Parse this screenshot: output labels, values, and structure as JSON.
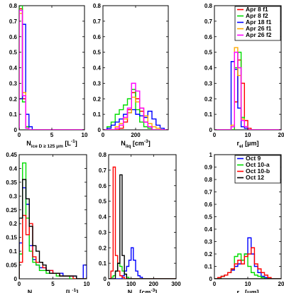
{
  "chart_data": [
    {
      "type": "histogram",
      "xlabel": "N_{ice D ≥ 125 μm} [L^{-1}]",
      "xlim": [
        0,
        10
      ],
      "ylim": [
        0,
        0.8
      ],
      "xticks": [
        0,
        5,
        10
      ],
      "yticks": [
        0,
        0.1,
        0.2,
        0.3,
        0.4,
        0.5,
        0.6,
        0.7,
        0.8
      ],
      "ytick_labels": [
        "0",
        "0.1",
        "0.2",
        "0.3",
        "0.4",
        "0.5",
        "0.6",
        "0.7",
        "0.8"
      ],
      "bin_edges": [
        0,
        0.5,
        1,
        1.5,
        2,
        2.5,
        3,
        3.5,
        4,
        4.5,
        5,
        5.5,
        6,
        6.5,
        7,
        7.5,
        8,
        8.5,
        9,
        9.5,
        10
      ],
      "series": [
        {
          "name": "Apr 8 f1",
          "color": "#ff0000",
          "values": [
            0.78,
            0.2,
            0.02,
            0,
            0,
            0,
            0,
            0,
            0,
            0,
            0,
            0,
            0,
            0,
            0,
            0,
            0,
            0,
            0,
            0
          ]
        },
        {
          "name": "Apr 8 f2",
          "color": "#00dd00",
          "values": [
            0.8,
            0.18,
            0.02,
            0,
            0,
            0,
            0,
            0,
            0,
            0,
            0,
            0,
            0,
            0,
            0,
            0,
            0,
            0,
            0,
            0
          ]
        },
        {
          "name": "Apr 18 f1",
          "color": "#0000ff",
          "values": [
            0.2,
            0.68,
            0.1,
            0.02,
            0,
            0,
            0,
            0,
            0,
            0,
            0,
            0,
            0,
            0,
            0,
            0,
            0,
            0,
            0,
            0
          ]
        },
        {
          "name": "Apr 26 f1",
          "color": "#ffaa00",
          "values": [
            0.75,
            0.24,
            0.01,
            0,
            0,
            0,
            0,
            0,
            0,
            0,
            0,
            0,
            0,
            0,
            0,
            0,
            0,
            0,
            0,
            0
          ]
        },
        {
          "name": "Apr 26 f2",
          "color": "#ff00ff",
          "values": [
            0.77,
            0.22,
            0.01,
            0,
            0,
            0,
            0,
            0,
            0,
            0,
            0,
            0,
            0,
            0,
            0,
            0,
            0,
            0,
            0,
            0
          ]
        }
      ]
    },
    {
      "type": "histogram",
      "xlabel": "N_{liq} [cm^{-3}]",
      "xlim": [
        0,
        400
      ],
      "ylim": [
        0,
        0.8
      ],
      "xticks": [
        0,
        200
      ],
      "yticks": [
        0,
        0.1,
        0.2,
        0.3,
        0.4,
        0.5,
        0.6,
        0.7,
        0.8
      ],
      "ytick_labels": [
        "0",
        "0.1",
        "0.2",
        "0.3",
        "0.4",
        "0.5",
        "0.6",
        "0.7",
        "0.8"
      ],
      "bin_edges": [
        0,
        25,
        50,
        75,
        100,
        125,
        150,
        175,
        200,
        225,
        250,
        275,
        300,
        325,
        350,
        375,
        400
      ],
      "series": [
        {
          "name": "Apr 8 f1",
          "color": "#ff0000",
          "values": [
            0,
            0,
            0,
            0,
            0.01,
            0.05,
            0.13,
            0.24,
            0.2,
            0.12,
            0.05,
            0.02,
            0,
            0,
            0,
            0
          ]
        },
        {
          "name": "Apr 8 f2",
          "color": "#00dd00",
          "values": [
            0,
            0.02,
            0.05,
            0.1,
            0.13,
            0.16,
            0.2,
            0.26,
            0.13,
            0.05,
            0.02,
            0.01,
            0,
            0,
            0,
            0
          ]
        },
        {
          "name": "Apr 18 f1",
          "color": "#0000ff",
          "values": [
            0,
            0.01,
            0.03,
            0.05,
            0.07,
            0.1,
            0.11,
            0.13,
            0.1,
            0.09,
            0.08,
            0.12,
            0.07,
            0.03,
            0.01,
            0
          ]
        },
        {
          "name": "Apr 26 f1",
          "color": "#ffaa00",
          "values": [
            0,
            0,
            0,
            0.02,
            0.04,
            0.07,
            0.11,
            0.21,
            0.18,
            0.14,
            0.09,
            0.04,
            0.02,
            0.01,
            0,
            0
          ]
        },
        {
          "name": "Apr 26 f2",
          "color": "#ff00ff",
          "values": [
            0,
            0,
            0,
            0.01,
            0.03,
            0.08,
            0.14,
            0.3,
            0.25,
            0.14,
            0.05,
            0.02,
            0,
            0,
            0,
            0
          ]
        }
      ]
    },
    {
      "type": "histogram",
      "xlabel": "r_{el} [μm]",
      "xlim": [
        0,
        20
      ],
      "ylim": [
        0,
        0.8
      ],
      "xticks": [
        0,
        10,
        20
      ],
      "yticks": [
        0,
        0.1,
        0.2,
        0.3,
        0.4,
        0.5,
        0.6,
        0.7,
        0.8
      ],
      "ytick_labels": [
        "0",
        "0.1",
        "0.2",
        "0.3",
        "0.4",
        "0.5",
        "0.6",
        "0.7",
        "0.8"
      ],
      "bin_edges": [
        0,
        1,
        2,
        3,
        4,
        5,
        6,
        7,
        8,
        9,
        10,
        11,
        12,
        13,
        14,
        15,
        16,
        17,
        18,
        19,
        20
      ],
      "series": [
        {
          "name": "Apr 8 f1",
          "color": "#ff0000",
          "values": [
            0,
            0,
            0,
            0,
            0,
            0,
            0.18,
            0.45,
            0.3,
            0.06,
            0.01,
            0,
            0,
            0,
            0,
            0,
            0,
            0,
            0,
            0
          ]
        },
        {
          "name": "Apr 8 f2",
          "color": "#00dd00",
          "values": [
            0,
            0,
            0,
            0,
            0,
            0,
            0.4,
            0.5,
            0.08,
            0.02,
            0,
            0,
            0,
            0,
            0,
            0,
            0,
            0,
            0,
            0
          ]
        },
        {
          "name": "Apr 18 f1",
          "color": "#0000ff",
          "values": [
            0,
            0,
            0,
            0,
            0,
            0.44,
            0.39,
            0.14,
            0.02,
            0.01,
            0,
            0,
            0,
            0,
            0,
            0,
            0,
            0,
            0,
            0
          ]
        },
        {
          "name": "Apr 26 f1",
          "color": "#ffaa00",
          "values": [
            0,
            0,
            0,
            0,
            0,
            0.03,
            0.53,
            0.35,
            0.07,
            0.02,
            0,
            0,
            0,
            0,
            0,
            0,
            0,
            0,
            0,
            0
          ]
        },
        {
          "name": "Apr 26 f2",
          "color": "#ff00ff",
          "values": [
            0,
            0,
            0,
            0,
            0,
            0.02,
            0.5,
            0.4,
            0.06,
            0.02,
            0,
            0,
            0,
            0,
            0,
            0,
            0,
            0,
            0,
            0
          ]
        }
      ]
    },
    {
      "type": "histogram",
      "xlabel": "N_{ice D ≥ 125 μm} [L^{-1}]",
      "xlim": [
        0,
        10
      ],
      "ylim": [
        0,
        0.45
      ],
      "xticks": [
        0,
        5,
        10
      ],
      "yticks": [
        0,
        0.05,
        0.1,
        0.15,
        0.2,
        0.25,
        0.3,
        0.35,
        0.4,
        0.45
      ],
      "ytick_labels": [
        "0",
        "0.05",
        "0.1",
        "0.15",
        "0.2",
        "0.25",
        "0.3",
        "0.35",
        "0.4",
        "0.45"
      ],
      "bin_edges": [
        0,
        0.5,
        1,
        1.5,
        2,
        2.5,
        3,
        3.5,
        4,
        4.5,
        5,
        5.5,
        6,
        6.5,
        7,
        7.5,
        8,
        8.5,
        9,
        9.5,
        10
      ],
      "series": [
        {
          "name": "Oct 9",
          "color": "#0000ff",
          "values": [
            0.13,
            0.33,
            0.27,
            0.12,
            0.07,
            0.05,
            0.04,
            0.04,
            0.03,
            0.03,
            0.02,
            0.02,
            0.02,
            0.01,
            0.01,
            0.01,
            0.01,
            0,
            0,
            0.05
          ]
        },
        {
          "name": "Oct 10-a",
          "color": "#00dd00",
          "values": [
            0.09,
            0.42,
            0.22,
            0.1,
            0.06,
            0.05,
            0.03,
            0.03,
            0.02,
            0.02,
            0.02,
            0.01,
            0.01,
            0.01,
            0.01,
            0,
            0,
            0,
            0,
            0
          ]
        },
        {
          "name": "Oct 10-b",
          "color": "#ff0000",
          "values": [
            0.06,
            0.23,
            0.16,
            0.2,
            0.08,
            0.06,
            0.06,
            0.04,
            0.03,
            0.03,
            0.02,
            0.02,
            0.01,
            0.01,
            0.01,
            0.01,
            0,
            0,
            0,
            0
          ]
        },
        {
          "name": "Oct 12",
          "color": "#000000",
          "values": [
            0.22,
            0.36,
            0.29,
            0.19,
            0.12,
            0.1,
            0.06,
            0.05,
            0.03,
            0.02,
            0.02,
            0.02,
            0.01,
            0.01,
            0.01,
            0.01,
            0.01,
            0,
            0,
            0
          ]
        }
      ]
    },
    {
      "type": "histogram",
      "xlabel": "N_{liq} [cm^{-3}]",
      "xlim": [
        0,
        300
      ],
      "ylim": [
        0,
        0.8
      ],
      "xticks": [
        0,
        100,
        200,
        300
      ],
      "yticks": [
        0,
        0.1,
        0.2,
        0.3,
        0.4,
        0.5,
        0.6,
        0.7,
        0.8
      ],
      "ytick_labels": [
        "0",
        "0.1",
        "0.2",
        "0.3",
        "0.4",
        "0.5",
        "0.6",
        "0.7",
        "0.8"
      ],
      "bin_edges": [
        0,
        10,
        20,
        30,
        40,
        50,
        60,
        70,
        80,
        90,
        100,
        110,
        120,
        130,
        140,
        150,
        160,
        170,
        180,
        190,
        200,
        210,
        220,
        230,
        240,
        250,
        260,
        270,
        280,
        290,
        300
      ],
      "series": [
        {
          "name": "Oct 9",
          "color": "#0000ff",
          "values": [
            0,
            0,
            0,
            0,
            0,
            0,
            0.02,
            0.05,
            0.08,
            0.12,
            0.2,
            0.12,
            0.05,
            0.02,
            0.01,
            0,
            0,
            0,
            0,
            0,
            0,
            0,
            0,
            0,
            0,
            0,
            0,
            0,
            0,
            0
          ]
        },
        {
          "name": "Oct 10-a",
          "color": "#00dd00",
          "values": [
            0,
            0.01,
            0.02,
            0.05,
            0.1,
            0.08,
            0.05,
            0.03,
            0.01,
            0,
            0,
            0,
            0,
            0,
            0,
            0,
            0,
            0,
            0,
            0,
            0,
            0,
            0,
            0,
            0,
            0,
            0,
            0,
            0,
            0
          ]
        },
        {
          "name": "Oct 10-b",
          "color": "#ff0000",
          "values": [
            0,
            0.05,
            0.72,
            0.15,
            0.05,
            0.02,
            0.01,
            0,
            0,
            0,
            0,
            0,
            0,
            0,
            0,
            0,
            0,
            0,
            0,
            0,
            0,
            0,
            0,
            0,
            0,
            0,
            0,
            0,
            0,
            0
          ]
        },
        {
          "name": "Oct 12",
          "color": "#000000",
          "values": [
            0,
            0,
            0,
            0.05,
            0.1,
            0.67,
            0.15,
            0.03,
            0,
            0,
            0,
            0,
            0,
            0,
            0,
            0,
            0,
            0,
            0,
            0,
            0,
            0,
            0,
            0,
            0,
            0,
            0,
            0,
            0,
            0
          ]
        }
      ]
    },
    {
      "type": "histogram",
      "xlabel": "r_{el} [μm]",
      "xlim": [
        0,
        20
      ],
      "ylim": [
        0,
        1
      ],
      "xticks": [
        0,
        10,
        20
      ],
      "yticks": [
        0,
        0.1,
        0.2,
        0.3,
        0.4,
        0.5,
        0.6,
        0.7,
        0.8,
        0.9,
        1
      ],
      "ytick_labels": [
        "0",
        "0.1",
        "0.2",
        "0.3",
        "0.4",
        "0.5",
        "0.6",
        "0.7",
        "0.8",
        "0.9",
        "1"
      ],
      "bin_edges": [
        0,
        1,
        2,
        3,
        4,
        5,
        6,
        7,
        8,
        9,
        10,
        11,
        12,
        13,
        14,
        15,
        16,
        17,
        18,
        19,
        20
      ],
      "series": [
        {
          "name": "Oct 9",
          "color": "#0000ff",
          "values": [
            0,
            0.01,
            0.02,
            0.03,
            0.05,
            0.07,
            0.1,
            0.12,
            0.15,
            0.2,
            0.33,
            0.2,
            0.1,
            0.05,
            0.02,
            0.01,
            0,
            0,
            0,
            0
          ]
        },
        {
          "name": "Oct 10-a",
          "color": "#00dd00",
          "values": [
            0,
            0,
            0.02,
            0.03,
            0.05,
            0.08,
            0.18,
            0.2,
            0.15,
            0.2,
            0.1,
            0.05,
            0.03,
            0.02,
            0.01,
            0,
            0,
            0,
            0,
            0
          ]
        },
        {
          "name": "Oct 10-b",
          "color": "#ff0000",
          "values": [
            0,
            0.01,
            0.02,
            0.03,
            0.05,
            0.08,
            0.12,
            0.15,
            0.12,
            0.18,
            0.2,
            0.25,
            0.12,
            0.08,
            0.05,
            0.03,
            0.01,
            0,
            0,
            0
          ]
        },
        {
          "name": "Oct 12",
          "color": "#000000",
          "values": [
            0,
            0,
            0,
            0,
            0,
            0,
            0,
            0,
            0,
            0,
            0,
            0,
            0,
            0,
            0,
            0,
            0,
            0,
            0,
            0
          ]
        }
      ]
    }
  ]
}
